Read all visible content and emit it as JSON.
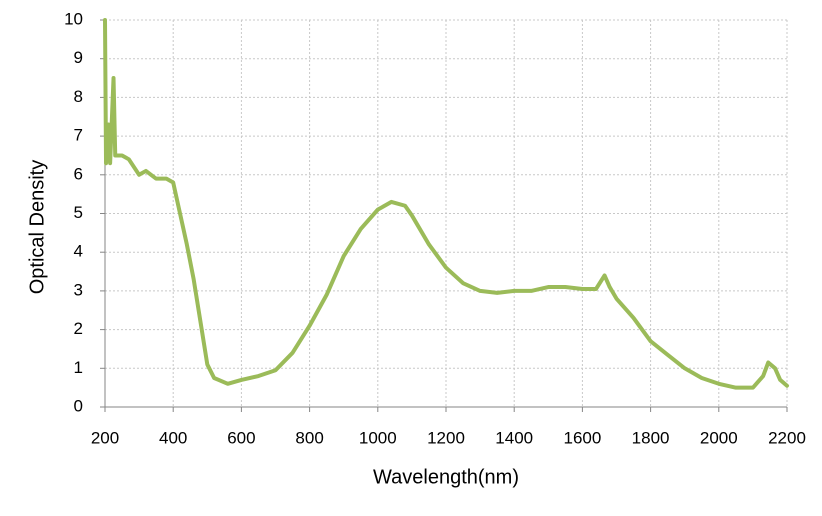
{
  "chart_data": {
    "type": "line",
    "xlabel": "Wavelength(nm)",
    "ylabel": "Optical Density",
    "x": [
      200,
      203,
      210,
      215,
      225,
      230,
      250,
      270,
      300,
      320,
      350,
      380,
      400,
      420,
      440,
      460,
      480,
      500,
      520,
      560,
      600,
      650,
      700,
      750,
      800,
      850,
      900,
      950,
      1000,
      1040,
      1080,
      1100,
      1150,
      1200,
      1250,
      1300,
      1350,
      1400,
      1450,
      1500,
      1550,
      1600,
      1640,
      1665,
      1680,
      1700,
      1750,
      1800,
      1850,
      1900,
      1950,
      2000,
      2050,
      2100,
      2130,
      2145,
      2165,
      2180,
      2200
    ],
    "series": [
      {
        "color": "#9bbb59",
        "values": [
          10,
          6.3,
          7.3,
          6.3,
          8.5,
          6.5,
          6.5,
          6.4,
          6.0,
          6.1,
          5.9,
          5.9,
          5.8,
          5.0,
          4.2,
          3.3,
          2.2,
          1.1,
          0.75,
          0.6,
          0.7,
          0.8,
          0.95,
          1.4,
          2.1,
          2.9,
          3.9,
          4.6,
          5.1,
          5.3,
          5.2,
          4.95,
          4.2,
          3.6,
          3.2,
          3.0,
          2.95,
          3.0,
          3.0,
          3.1,
          3.1,
          3.05,
          3.05,
          3.4,
          3.1,
          2.8,
          2.3,
          1.7,
          1.35,
          1.0,
          0.75,
          0.6,
          0.5,
          0.5,
          0.8,
          1.15,
          1.0,
          0.7,
          0.55
        ]
      }
    ],
    "xlim": [
      200,
      2200
    ],
    "xticks": [
      200,
      400,
      600,
      800,
      1000,
      1200,
      1400,
      1600,
      1800,
      2000,
      2200
    ],
    "ylim": [
      0,
      10
    ],
    "yticks": [
      0,
      1,
      2,
      3,
      4,
      5,
      6,
      7,
      8,
      9,
      10
    ],
    "grid": true
  }
}
